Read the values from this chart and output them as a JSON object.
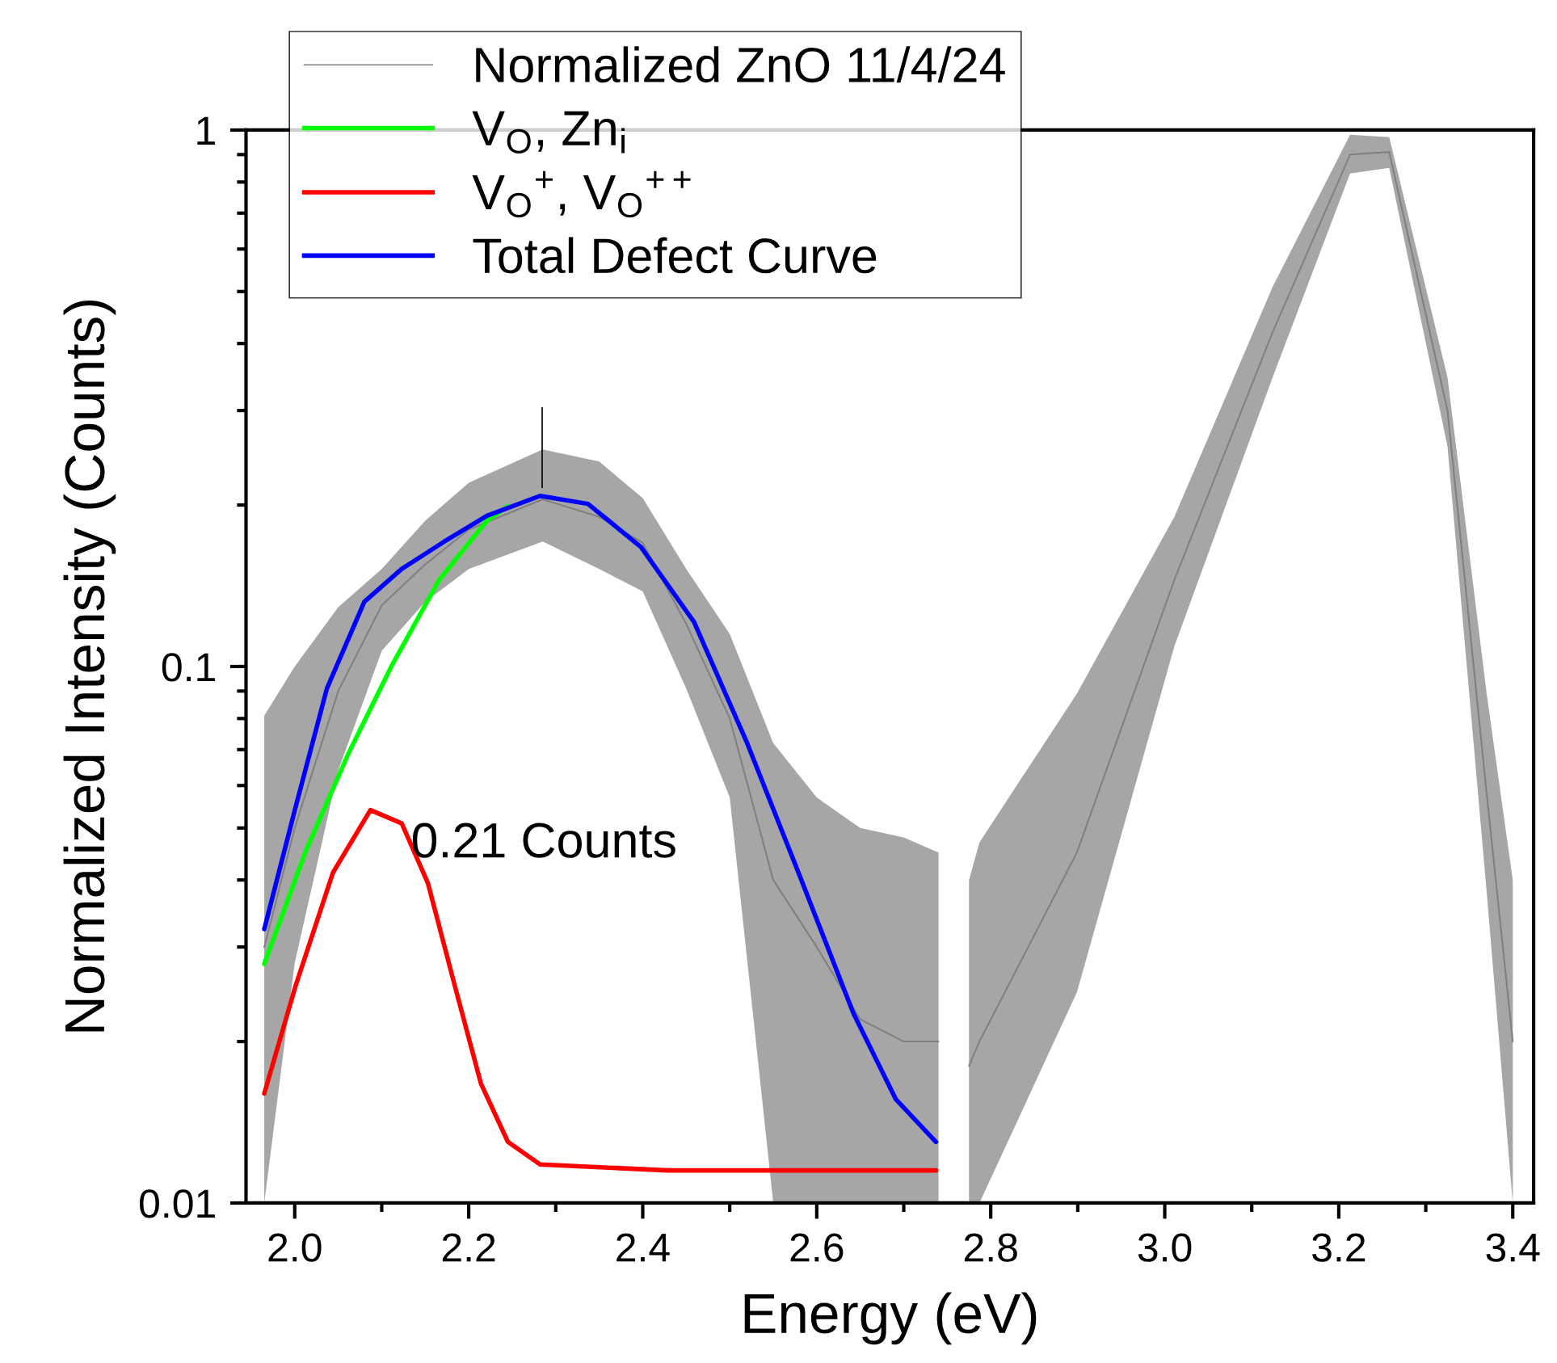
{
  "chart_data": {
    "type": "line",
    "xlabel": "Energy (eV)",
    "ylabel": "Normalized Intensity (Counts)",
    "log": "y",
    "legend": "top left",
    "grid": false,
    "xlim": [
      1.944,
      3.424
    ],
    "ylim": [
      0.01,
      1
    ],
    "xticks": [
      {
        "value": 2,
        "label": "2.0"
      },
      {
        "value": 2.1,
        "label": null
      },
      2.2,
      {
        "value": 2.3,
        "label": null
      },
      2.4,
      {
        "value": 2.5,
        "label": null
      },
      2.6,
      {
        "value": 2.7,
        "label": null
      },
      2.8,
      {
        "value": 2.9,
        "label": null
      },
      {
        "value": 3,
        "label": "3.0"
      },
      {
        "value": 3.1,
        "label": null
      },
      3.2,
      {
        "value": 3.3,
        "label": null
      },
      3.4
    ],
    "yticks": [
      0.01,
      {
        "value": 0.02,
        "label": null
      },
      {
        "value": 0.03,
        "label": null
      },
      {
        "value": 0.04,
        "label": null
      },
      {
        "value": 0.05,
        "label": null
      },
      {
        "value": 0.06,
        "label": null
      },
      {
        "value": 0.07,
        "label": null
      },
      {
        "value": 0.08,
        "label": null
      },
      {
        "value": 0.09,
        "label": null
      },
      0.1,
      {
        "value": 0.2,
        "label": null
      },
      {
        "value": 0.3,
        "label": null
      },
      {
        "value": 0.4,
        "label": null
      },
      {
        "value": 0.5,
        "label": null
      },
      {
        "value": 0.6,
        "label": null
      },
      {
        "value": 0.7,
        "label": null
      },
      {
        "value": 0.8,
        "label": null
      },
      {
        "value": 0.9,
        "label": null
      },
      1
    ],
    "annotations": [
      "0.21 Counts"
    ],
    "series": [
      {
        "name": "Normalized ZnO 11/4/24",
        "color": "#808080",
        "x": [
          1.965,
          2.0,
          2.05,
          2.1,
          2.15,
          2.2,
          2.285,
          2.35,
          2.4,
          2.45,
          2.5,
          2.55,
          2.6,
          2.65,
          2.7,
          2.74,
          2.755,
          2.775,
          2.787,
          2.899,
          3.011,
          3.124,
          3.213,
          3.258,
          3.325,
          3.37,
          3.4
        ],
        "values": [
          0.03,
          0.05,
          0.09,
          0.13,
          0.155,
          0.18,
          0.205,
          0.19,
          0.17,
          0.12,
          0.08,
          0.04,
          0.03,
          0.022,
          0.02,
          0.02,
          null,
          0.018,
          0.02,
          0.045,
          0.145,
          0.42,
          0.9,
          0.91,
          0.3,
          0.058,
          0.02
        ],
        "lower": [
          0.01,
          0.028,
          0.064,
          0.107,
          0.132,
          0.152,
          0.171,
          0.152,
          0.138,
          0.091,
          0.057,
          0.01,
          0.01,
          0.01,
          0.01,
          0.01,
          null,
          0.01,
          0.01,
          0.0247,
          0.109,
          0.346,
          0.83,
          0.85,
          0.257,
          0.038,
          0.01
        ],
        "upper": [
          0.081,
          0.1,
          0.129,
          0.152,
          0.187,
          0.22,
          0.254,
          0.241,
          0.206,
          0.152,
          0.115,
          0.072,
          0.057,
          0.05,
          0.048,
          0.045,
          null,
          0.04,
          0.047,
          0.089,
          0.19,
          0.51,
          0.98,
          0.97,
          0.346,
          0.089,
          0.04
        ]
      },
      {
        "name": "V$_{O}$, Zn$_{i}$",
        "color": "#00ff00",
        "x": [
          1.965,
          2.013,
          2.062,
          2.111,
          2.166,
          2.221,
          2.245
        ],
        "values": [
          0.0279,
          0.0454,
          0.069,
          0.1,
          0.145,
          0.187,
          0.199
        ]
      },
      {
        "name": "V$_{O}$$^{+}$, V$_{O}$$^{++}$",
        "color": "#ff0000",
        "x": [
          1.965,
          2.001,
          2.044,
          2.087,
          2.123,
          2.153,
          2.184,
          2.214,
          2.245,
          2.282,
          2.429,
          2.737
        ],
        "values": [
          0.016,
          0.0254,
          0.0413,
          0.054,
          0.051,
          0.0395,
          0.0254,
          0.0167,
          0.013,
          0.0118,
          0.0115,
          0.0115
        ]
      },
      {
        "name": "Total Defect Curve",
        "color": "#0000ff",
        "x": [
          1.965,
          2.001,
          2.037,
          2.08,
          2.123,
          2.172,
          2.221,
          2.282,
          2.337,
          2.398,
          2.459,
          2.52,
          2.581,
          2.642,
          2.691,
          2.737
        ],
        "values": [
          0.0324,
          0.0547,
          0.091,
          0.132,
          0.152,
          0.171,
          0.191,
          0.208,
          0.201,
          0.167,
          0.121,
          0.072,
          0.0405,
          0.0226,
          0.0156,
          0.013
        ]
      }
    ]
  }
}
